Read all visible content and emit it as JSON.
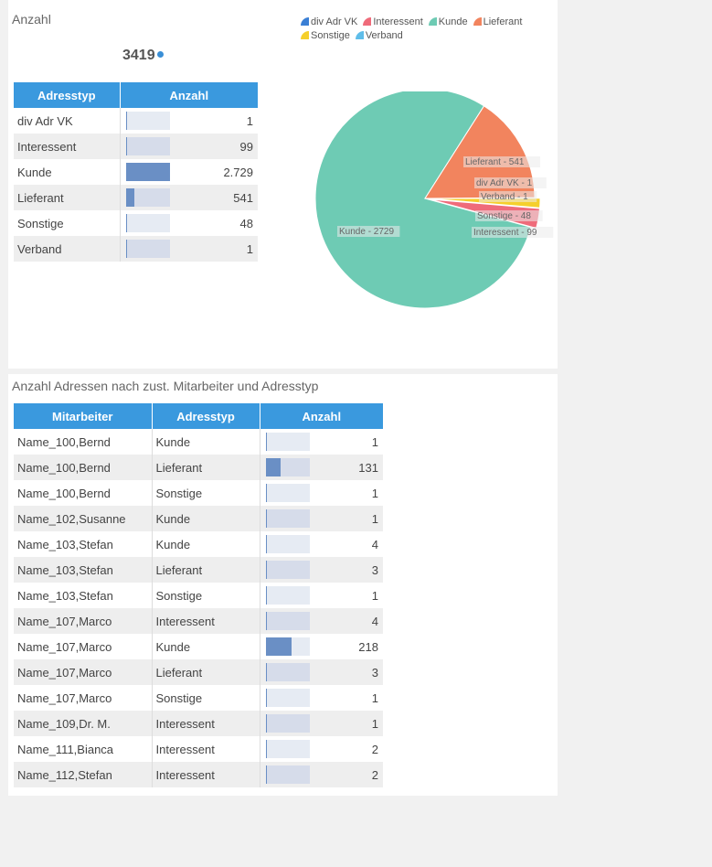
{
  "panel1": {
    "title": "Anzahl",
    "total": "3419",
    "table": {
      "headers": [
        "Adresstyp",
        "Anzahl"
      ],
      "rows": [
        {
          "typ": "div Adr VK",
          "anzahl": "1",
          "value": 1
        },
        {
          "typ": "Interessent",
          "anzahl": "99",
          "value": 99
        },
        {
          "typ": "Kunde",
          "anzahl": "2.729",
          "value": 2729
        },
        {
          "typ": "Lieferant",
          "anzahl": "541",
          "value": 541
        },
        {
          "typ": "Sonstige",
          "anzahl": "48",
          "value": 48
        },
        {
          "typ": "Verband",
          "anzahl": "1",
          "value": 1
        }
      ]
    },
    "chart_data": {
      "type": "pie",
      "legend_position": "top",
      "slices": [
        {
          "name": "div Adr VK",
          "value": 1,
          "label": "div Adr VK - 1",
          "color": "#3a7fd5"
        },
        {
          "name": "Interessent",
          "value": 99,
          "label": "Interessent - 99",
          "color": "#ef6b7a"
        },
        {
          "name": "Kunde",
          "value": 2729,
          "label": "Kunde - 2729",
          "color": "#6ecbb4"
        },
        {
          "name": "Lieferant",
          "value": 541,
          "label": "Lieferant - 541",
          "color": "#f2845e"
        },
        {
          "name": "Sonstige",
          "value": 48,
          "label": "Sonstige - 48",
          "color": "#f5cf2c"
        },
        {
          "name": "Verband",
          "value": 1,
          "label": "Verband - 1",
          "color": "#5fbde9"
        }
      ]
    }
  },
  "panel2": {
    "title": "Anzahl Adressen nach zust. Mitarbeiter und Adresstyp",
    "table": {
      "headers": [
        "Mitarbeiter",
        "Adresstyp",
        "Anzahl"
      ],
      "rows": [
        {
          "mitarbeiter": "Name_100,Bernd",
          "typ": "Kunde",
          "anzahl": "1",
          "value": 1
        },
        {
          "mitarbeiter": "Name_100,Bernd",
          "typ": "Lieferant",
          "anzahl": "131",
          "value": 131
        },
        {
          "mitarbeiter": "Name_100,Bernd",
          "typ": "Sonstige",
          "anzahl": "1",
          "value": 1
        },
        {
          "mitarbeiter": "Name_102,Susanne",
          "typ": "Kunde",
          "anzahl": "1",
          "value": 1
        },
        {
          "mitarbeiter": "Name_103,Stefan",
          "typ": "Kunde",
          "anzahl": "4",
          "value": 4
        },
        {
          "mitarbeiter": "Name_103,Stefan",
          "typ": "Lieferant",
          "anzahl": "3",
          "value": 3
        },
        {
          "mitarbeiter": "Name_103,Stefan",
          "typ": "Sonstige",
          "anzahl": "1",
          "value": 1
        },
        {
          "mitarbeiter": "Name_107,Marco",
          "typ": "Interessent",
          "anzahl": "4",
          "value": 4
        },
        {
          "mitarbeiter": "Name_107,Marco",
          "typ": "Kunde",
          "anzahl": "218",
          "value": 218
        },
        {
          "mitarbeiter": "Name_107,Marco",
          "typ": "Lieferant",
          "anzahl": "3",
          "value": 3
        },
        {
          "mitarbeiter": "Name_107,Marco",
          "typ": "Sonstige",
          "anzahl": "1",
          "value": 1
        },
        {
          "mitarbeiter": "Name_109,Dr. M.",
          "typ": "Interessent",
          "anzahl": "1",
          "value": 1
        },
        {
          "mitarbeiter": "Name_111,Bianca",
          "typ": "Interessent",
          "anzahl": "2",
          "value": 2
        },
        {
          "mitarbeiter": "Name_112,Stefan",
          "typ": "Interessent",
          "anzahl": "2",
          "value": 2
        }
      ]
    }
  }
}
